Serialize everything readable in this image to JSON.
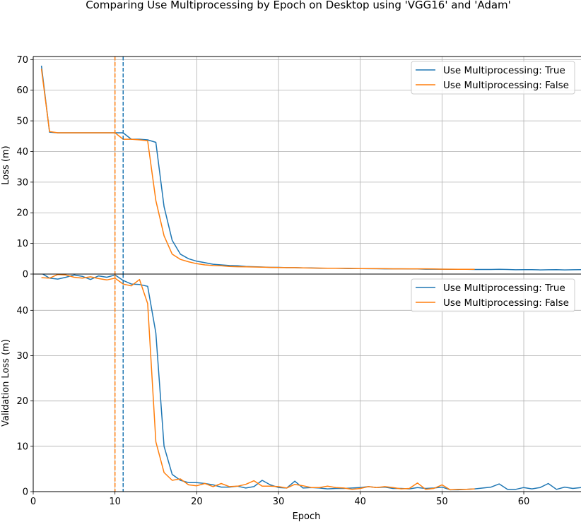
{
  "title": "Comparing Use Multiprocessing by Epoch on Desktop using 'VGG16' and 'Adam'",
  "colors": {
    "true": "#1f77b4",
    "false": "#ff7f0e"
  },
  "chart_data": [
    {
      "type": "line",
      "xlabel": "",
      "ylabel": "Loss (m)",
      "xlim": [
        0,
        67
      ],
      "ylim": [
        0,
        71
      ],
      "xticks": [
        0,
        10,
        20,
        30,
        40,
        50,
        60
      ],
      "yticks": [
        0,
        10,
        20,
        30,
        40,
        50,
        60,
        70
      ],
      "grid": true,
      "legend": "top-right",
      "vlines": [
        {
          "x": 10,
          "series": "Use Multiprocessing: False"
        },
        {
          "x": 11,
          "series": "Use Multiprocessing: True"
        }
      ],
      "series": [
        {
          "name": "Use Multiprocessing: True",
          "x": [
            1,
            2,
            3,
            4,
            5,
            6,
            7,
            8,
            9,
            10,
            11,
            12,
            13,
            14,
            15,
            16,
            17,
            18,
            19,
            20,
            21,
            22,
            23,
            24,
            25,
            26,
            27,
            28,
            29,
            30,
            31,
            32,
            33,
            34,
            35,
            36,
            37,
            38,
            39,
            40,
            41,
            42,
            43,
            44,
            45,
            46,
            47,
            48,
            49,
            50,
            51,
            52,
            53,
            54,
            55,
            56,
            57,
            58,
            59,
            60,
            61,
            62,
            63,
            64,
            65,
            66,
            67
          ],
          "values": [
            68,
            46.3,
            46.1,
            46.1,
            46.1,
            46.1,
            46.1,
            46.1,
            46.1,
            46.1,
            46.1,
            44,
            44,
            43.8,
            43,
            22,
            11,
            6.5,
            5,
            4.2,
            3.7,
            3.2,
            3,
            2.8,
            2.7,
            2.5,
            2.4,
            2.3,
            2.2,
            2.2,
            2.1,
            2.1,
            2,
            2,
            1.9,
            1.9,
            1.9,
            1.85,
            1.8,
            1.8,
            1.75,
            1.75,
            1.7,
            1.7,
            1.7,
            1.65,
            1.65,
            1.6,
            1.6,
            1.6,
            1.55,
            1.55,
            1.55,
            1.5,
            1.5,
            1.5,
            1.55,
            1.5,
            1.4,
            1.45,
            1.45,
            1.35,
            1.4,
            1.45,
            1.35,
            1.4,
            1.45
          ]
        },
        {
          "name": "Use Multiprocessing: False",
          "x": [
            1,
            2,
            3,
            4,
            5,
            6,
            7,
            8,
            9,
            10,
            11,
            12,
            13,
            14,
            15,
            16,
            17,
            18,
            19,
            20,
            21,
            22,
            23,
            24,
            25,
            26,
            27,
            28,
            29,
            30,
            31,
            32,
            33,
            34,
            35,
            36,
            37,
            38,
            39,
            40,
            41,
            42,
            43,
            44,
            45,
            46,
            47,
            48,
            49,
            50,
            51,
            52,
            53,
            54
          ],
          "values": [
            67,
            46.5,
            46.1,
            46.1,
            46.1,
            46.1,
            46.1,
            46.1,
            46.1,
            46.1,
            44,
            44,
            43.8,
            43.5,
            24,
            12.5,
            6.5,
            4.8,
            4,
            3.4,
            3,
            2.8,
            2.7,
            2.5,
            2.4,
            2.35,
            2.3,
            2.25,
            2.2,
            2.15,
            2.1,
            2.1,
            2,
            1.95,
            1.95,
            1.9,
            1.9,
            1.9,
            1.85,
            1.8,
            1.8,
            1.75,
            1.75,
            1.7,
            1.7,
            1.7,
            1.7,
            1.7,
            1.65,
            1.6,
            1.6,
            1.55,
            1.55,
            1.55
          ]
        }
      ]
    },
    {
      "type": "line",
      "xlabel": "Epoch",
      "ylabel": "Validation Loss (m)",
      "xlim": [
        0,
        67
      ],
      "ylim": [
        0,
        48
      ],
      "xticks": [
        0,
        10,
        20,
        30,
        40,
        50,
        60
      ],
      "yticks": [
        0,
        10,
        20,
        30,
        40
      ],
      "grid": true,
      "legend": "top-right",
      "vlines": [
        {
          "x": 10,
          "series": "Use Multiprocessing: False"
        },
        {
          "x": 11,
          "series": "Use Multiprocessing: True"
        }
      ],
      "series": [
        {
          "name": "Use Multiprocessing: True",
          "x": [
            1,
            2,
            3,
            4,
            5,
            6,
            7,
            8,
            9,
            10,
            11,
            12,
            13,
            14,
            15,
            16,
            17,
            18,
            19,
            20,
            21,
            22,
            23,
            24,
            25,
            26,
            27,
            28,
            29,
            30,
            31,
            32,
            33,
            34,
            35,
            36,
            37,
            38,
            39,
            40,
            41,
            42,
            43,
            44,
            45,
            46,
            47,
            48,
            49,
            50,
            51,
            52,
            53,
            54,
            55,
            56,
            57,
            58,
            59,
            60,
            61,
            62,
            63,
            64,
            65,
            66,
            67
          ],
          "values": [
            48.2,
            47.1,
            46.9,
            47.3,
            47.8,
            47.5,
            46.8,
            47.6,
            47.3,
            47.8,
            46.6,
            45.8,
            45.7,
            45.3,
            35,
            10,
            3.8,
            2.5,
            2,
            2,
            1.8,
            1.5,
            1,
            1,
            1.2,
            0.8,
            1.1,
            2.5,
            1.5,
            0.9,
            0.8,
            2.3,
            0.8,
            0.9,
            0.8,
            0.6,
            0.7,
            0.7,
            0.8,
            0.9,
            1.1,
            0.9,
            1,
            0.7,
            0.7,
            0.6,
            0.9,
            0.7,
            0.8,
            1,
            0.4,
            0.4,
            0.5,
            0.6,
            0.8,
            1,
            1.7,
            0.5,
            0.5,
            0.9,
            0.6,
            0.9,
            1.8,
            0.5,
            1,
            0.7,
            0.9
          ]
        },
        {
          "name": "Use Multiprocessing: False",
          "x": [
            1,
            2,
            3,
            4,
            5,
            6,
            7,
            8,
            9,
            10,
            11,
            12,
            13,
            14,
            15,
            16,
            17,
            18,
            19,
            20,
            21,
            22,
            23,
            24,
            25,
            26,
            27,
            28,
            29,
            30,
            31,
            32,
            33,
            34,
            35,
            36,
            37,
            38,
            39,
            40,
            41,
            42,
            43,
            44,
            45,
            46,
            47,
            48,
            49,
            50,
            51,
            52,
            53,
            54
          ],
          "values": [
            47.2,
            47.1,
            47.9,
            47.8,
            47.3,
            47.1,
            47.4,
            47,
            46.7,
            47.1,
            45.8,
            45.4,
            46.8,
            41.5,
            11,
            4.2,
            2.5,
            2.8,
            1.5,
            1.3,
            1.8,
            1.1,
            1.8,
            1.1,
            1.2,
            1.6,
            2.4,
            1.2,
            1.2,
            1.1,
            0.8,
            1.6,
            1.3,
            0.9,
            0.9,
            1.2,
            0.9,
            0.8,
            0.5,
            0.7,
            1.1,
            0.9,
            1.1,
            0.9,
            0.6,
            0.7,
            1.9,
            0.5,
            0.7,
            1.5,
            0.4,
            0.5,
            0.5,
            0.6
          ]
        }
      ]
    }
  ]
}
